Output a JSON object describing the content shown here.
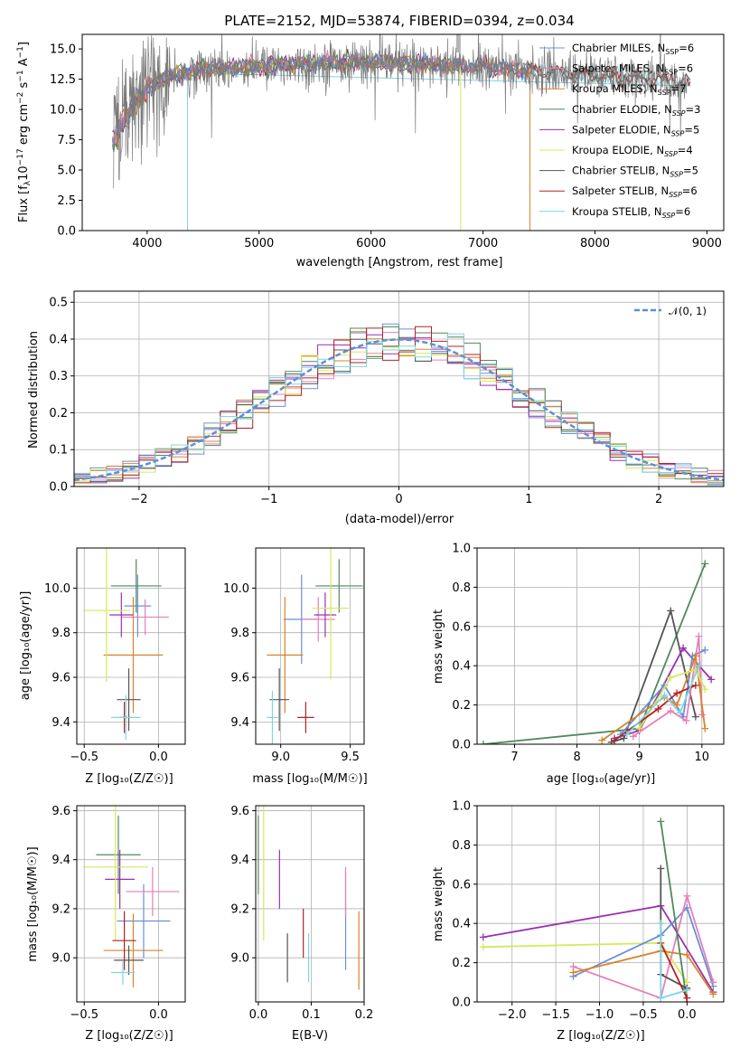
{
  "labels": {
    "main_title": "PLATE=2152, MJD=53874, FIBERID=0394, z=0.034",
    "flux_ylabel": "Flux [f",
    "flux_ylabel_sub": "λ",
    "flux_ylabel_mid": "10",
    "flux_ylabel_sup1": "−17",
    "flux_ylabel_unit": " erg cm",
    "flux_ylabel_sup2": "−2",
    "flux_ylabel_s": " s",
    "flux_ylabel_sup3": "−1",
    "flux_ylabel_end": " A",
    "flux_ylabel_sup4": "−1",
    "flux_ylabel_close": "]",
    "wavelength_xlabel": "wavelength [Angstrom, rest frame]",
    "hist_ylabel": "Normed distribution",
    "hist_xlabel": "(data-model)/error",
    "hist_legend": "𝒩(0, 1)",
    "age_ylabel": "age  [log₁₀(age/yr)]",
    "z_xlabel": "Z [log₁₀(Z/Z☉)]",
    "mass_xlabel": "mass [log₁₀(M/M☉)]",
    "massw_ylabel": "mass weight",
    "age_xlabel": "age  [log₁₀(age/yr)]",
    "mass_ylabel": "mass [log₁₀(M/M☉)]",
    "ebv_xlabel": "E(B-V)"
  },
  "legend": [
    {
      "lib": "Chabrier MILES",
      "n": "6",
      "color": "#6a8fd8"
    },
    {
      "lib": "Salpeter MILES",
      "n": "6",
      "color": "#e77fb8"
    },
    {
      "lib": "Kroupa MILES",
      "n": "7",
      "color": "#d8842b"
    },
    {
      "lib": "Chabrier ELODIE",
      "n": "3",
      "color": "#4f8a5b"
    },
    {
      "lib": "Salpeter ELODIE",
      "n": "5",
      "color": "#9b30b0"
    },
    {
      "lib": "Kroupa ELODIE",
      "n": "4",
      "color": "#d6e85a"
    },
    {
      "lib": "Chabrier STELIB",
      "n": "5",
      "color": "#555555"
    },
    {
      "lib": "Salpeter STELIB",
      "n": "6",
      "color": "#b22222"
    },
    {
      "lib": "Kroupa STELIB",
      "n": "6",
      "color": "#7fd6e0"
    }
  ],
  "chart_data": [
    {
      "type": "line",
      "title": "PLATE=2152, MJD=53874, FIBERID=0394, z=0.034",
      "xlabel": "wavelength [Angstrom, rest frame]",
      "xlim": [
        3420,
        9150
      ],
      "ylim": [
        0,
        16.2
      ],
      "xticks": [
        4000,
        5000,
        6000,
        7000,
        8000,
        9000
      ],
      "yticks": [
        0.0,
        2.5,
        5.0,
        7.5,
        10.0,
        12.5,
        15.0
      ],
      "continuum": [
        [
          3700,
          8.0
        ],
        [
          3800,
          10.0
        ],
        [
          3900,
          11.5
        ],
        [
          4000,
          12.0
        ],
        [
          4200,
          12.7
        ],
        [
          4500,
          13.3
        ],
        [
          5000,
          13.6
        ],
        [
          5500,
          13.8
        ],
        [
          6000,
          13.9
        ],
        [
          6500,
          13.7
        ],
        [
          7000,
          13.5
        ],
        [
          7500,
          13.1
        ],
        [
          8000,
          12.8
        ],
        [
          8500,
          12.5
        ],
        [
          8800,
          12.2
        ]
      ],
      "dropouts": [
        {
          "lib": "Kroupa MILES",
          "x": 7420
        },
        {
          "lib": "Kroupa ELODIE",
          "x": 6800
        },
        {
          "lib": "Kroupa STELIB",
          "x": 4360
        }
      ]
    },
    {
      "type": "bar",
      "xlabel": "(data-model)/error",
      "ylabel": "Normed distribution",
      "xlim": [
        -2.5,
        2.5
      ],
      "ylim": [
        0,
        0.53
      ],
      "xticks": [
        -2,
        -1,
        0,
        1,
        2
      ],
      "yticks": [
        0.0,
        0.1,
        0.2,
        0.3,
        0.4,
        0.5
      ],
      "reference": {
        "name": "𝒩(0, 1)",
        "mu": 0,
        "sigma": 1
      }
    },
    {
      "type": "scatter",
      "xlabel": "Z [log₁₀(Z/Z☉)]",
      "ylabel": "age  [log₁₀(age/yr)]",
      "xlim": [
        -0.55,
        0.18
      ],
      "ylim": [
        9.3,
        10.18
      ],
      "xticks": [
        -0.5,
        0.0
      ],
      "yticks": [
        9.4,
        9.6,
        9.8,
        10.0
      ],
      "points": [
        {
          "x": -0.14,
          "y": 9.92,
          "xe": 0.09,
          "ye": 0.14,
          "lib": "Chabrier MILES"
        },
        {
          "x": -0.09,
          "y": 9.87,
          "xe": 0.16,
          "ye": 0.08,
          "lib": "Salpeter MILES"
        },
        {
          "x": -0.17,
          "y": 9.7,
          "xe": 0.2,
          "ye": 0.26,
          "lib": "Kroupa MILES"
        },
        {
          "x": -0.15,
          "y": 10.01,
          "xe": 0.17,
          "ye": 0.12,
          "lib": "Chabrier ELODIE"
        },
        {
          "x": -0.25,
          "y": 9.88,
          "xe": 0.08,
          "ye": 0.1,
          "lib": "Salpeter ELODIE"
        },
        {
          "x": -0.35,
          "y": 9.9,
          "xe": 0.16,
          "ye": 0.32,
          "lib": "Kroupa ELODIE"
        },
        {
          "x": -0.2,
          "y": 9.5,
          "xe": 0.08,
          "ye": 0.14,
          "lib": "Chabrier STELIB"
        },
        {
          "x": -0.23,
          "y": 9.42,
          "xe": 0.04,
          "ye": 0.07,
          "lib": "Salpeter STELIB"
        },
        {
          "x": -0.22,
          "y": 9.42,
          "xe": 0.1,
          "ye": 0.1,
          "lib": "Kroupa STELIB"
        }
      ]
    },
    {
      "type": "scatter",
      "xlabel": "mass [log₁₀(M/M☉)]",
      "ylabel": "",
      "xlim": [
        8.82,
        9.6
      ],
      "ylim": [
        9.3,
        10.18
      ],
      "xticks": [
        9.0,
        9.5
      ],
      "yticks": [
        9.4,
        9.6,
        9.8,
        10.0
      ],
      "points": [
        {
          "x": 9.15,
          "y": 9.86,
          "xe": 0.13,
          "ye": 0.2,
          "lib": "Chabrier MILES"
        },
        {
          "x": 9.27,
          "y": 9.86,
          "xe": 0.12,
          "ye": 0.1,
          "lib": "Salpeter MILES"
        },
        {
          "x": 9.03,
          "y": 9.7,
          "xe": 0.13,
          "ye": 0.26,
          "lib": "Kroupa MILES"
        },
        {
          "x": 9.42,
          "y": 10.01,
          "xe": 0.17,
          "ye": 0.12,
          "lib": "Chabrier ELODIE"
        },
        {
          "x": 9.32,
          "y": 9.88,
          "xe": 0.08,
          "ye": 0.1,
          "lib": "Salpeter ELODIE"
        },
        {
          "x": 9.36,
          "y": 9.91,
          "xe": 0.13,
          "ye": 0.32,
          "lib": "Kroupa ELODIE"
        },
        {
          "x": 8.99,
          "y": 9.5,
          "xe": 0.07,
          "ye": 0.14,
          "lib": "Chabrier STELIB"
        },
        {
          "x": 9.18,
          "y": 9.42,
          "xe": 0.06,
          "ye": 0.07,
          "lib": "Salpeter STELIB"
        },
        {
          "x": 8.94,
          "y": 9.42,
          "xe": 0.04,
          "ye": 0.12,
          "lib": "Kroupa STELIB"
        }
      ]
    },
    {
      "type": "line",
      "xlabel": "age  [log₁₀(age/yr)]",
      "ylabel": "mass weight",
      "xlim": [
        6.4,
        10.35
      ],
      "ylim": [
        0,
        1.0
      ],
      "xticks": [
        7,
        8,
        9,
        10
      ],
      "yticks": [
        0.0,
        0.2,
        0.4,
        0.6,
        0.8,
        1.0
      ],
      "series": [
        {
          "lib": "Chabrier ELODIE",
          "points": [
            [
              6.5,
              0.0
            ],
            [
              9.0,
              0.08
            ],
            [
              10.05,
              0.92
            ]
          ]
        },
        {
          "lib": "Chabrier STELIB",
          "points": [
            [
              8.55,
              0.01
            ],
            [
              8.75,
              0.03
            ],
            [
              9.5,
              0.68
            ],
            [
              9.9,
              0.14
            ]
          ]
        },
        {
          "lib": "Salpeter ELODIE",
          "points": [
            [
              8.6,
              0.03
            ],
            [
              9.0,
              0.07
            ],
            [
              9.7,
              0.49
            ],
            [
              10.15,
              0.33
            ]
          ]
        },
        {
          "lib": "Chabrier MILES",
          "points": [
            [
              8.7,
              0.05
            ],
            [
              9.4,
              0.3
            ],
            [
              9.7,
              0.14
            ],
            [
              9.85,
              0.45
            ],
            [
              10.05,
              0.48
            ]
          ]
        },
        {
          "lib": "Salpeter MILES",
          "points": [
            [
              8.9,
              0.04
            ],
            [
              9.5,
              0.17
            ],
            [
              9.75,
              0.12
            ],
            [
              9.95,
              0.55
            ],
            [
              10.0,
              0.15
            ]
          ]
        },
        {
          "lib": "Kroupa MILES",
          "points": [
            [
              8.4,
              0.02
            ],
            [
              9.4,
              0.24
            ],
            [
              9.6,
              0.2
            ],
            [
              9.9,
              0.45
            ],
            [
              10.05,
              0.08
            ]
          ]
        },
        {
          "lib": "Kroupa ELODIE",
          "points": [
            [
              9.0,
              0.08
            ],
            [
              9.5,
              0.34
            ],
            [
              9.9,
              0.38
            ],
            [
              10.05,
              0.28
            ]
          ]
        },
        {
          "lib": "Salpeter STELIB",
          "points": [
            [
              8.6,
              0.02
            ],
            [
              9.3,
              0.18
            ],
            [
              9.6,
              0.26
            ],
            [
              9.9,
              0.3
            ]
          ]
        },
        {
          "lib": "Kroupa STELIB",
          "points": [
            [
              8.8,
              0.05
            ],
            [
              9.4,
              0.25
            ],
            [
              9.65,
              0.16
            ],
            [
              9.95,
              0.4
            ]
          ]
        }
      ]
    },
    {
      "type": "scatter",
      "xlabel": "Z [log₁₀(Z/Z☉)]",
      "ylabel": "mass [log₁₀(M/M☉)]",
      "xlim": [
        -0.55,
        0.18
      ],
      "ylim": [
        8.82,
        9.62
      ],
      "xticks": [
        -0.5,
        0.0
      ],
      "yticks": [
        9.0,
        9.2,
        9.4,
        9.6
      ],
      "points": [
        {
          "x": -0.1,
          "y": 9.15,
          "xe": 0.18,
          "ye": 0.15,
          "lib": "Chabrier MILES"
        },
        {
          "x": -0.04,
          "y": 9.27,
          "xe": 0.18,
          "ye": 0.1,
          "lib": "Salpeter MILES"
        },
        {
          "x": -0.17,
          "y": 9.03,
          "xe": 0.2,
          "ye": 0.15,
          "lib": "Kroupa MILES"
        },
        {
          "x": -0.27,
          "y": 9.42,
          "xe": 0.15,
          "ye": 0.16,
          "lib": "Chabrier ELODIE"
        },
        {
          "x": -0.26,
          "y": 9.32,
          "xe": 0.1,
          "ye": 0.12,
          "lib": "Salpeter ELODIE"
        },
        {
          "x": -0.29,
          "y": 9.37,
          "xe": 0.22,
          "ye": 0.3,
          "lib": "Kroupa ELODIE"
        },
        {
          "x": -0.2,
          "y": 8.99,
          "xe": 0.1,
          "ye": 0.06,
          "lib": "Chabrier STELIB"
        },
        {
          "x": -0.23,
          "y": 9.07,
          "xe": 0.08,
          "ye": 0.12,
          "lib": "Salpeter STELIB"
        },
        {
          "x": -0.24,
          "y": 8.94,
          "xe": 0.08,
          "ye": 0.05,
          "lib": "Kroupa STELIB"
        }
      ]
    },
    {
      "type": "scatter",
      "xlabel": "E(B-V)",
      "ylabel": "",
      "xlim": [
        -0.005,
        0.2
      ],
      "ylim": [
        8.82,
        9.62
      ],
      "xticks": [
        0.0,
        0.1,
        0.2
      ],
      "yticks": [
        9.0,
        9.2,
        9.4,
        9.6
      ],
      "points": [
        {
          "x": 0.165,
          "y": 9.15,
          "xe": 0,
          "ye": 0.2,
          "lib": "Chabrier MILES"
        },
        {
          "x": 0.165,
          "y": 9.27,
          "xe": 0,
          "ye": 0.1,
          "lib": "Salpeter MILES"
        },
        {
          "x": 0.19,
          "y": 9.03,
          "xe": 0,
          "ye": 0.16,
          "lib": "Kroupa MILES"
        },
        {
          "x": 0.0,
          "y": 9.42,
          "xe": 0,
          "ye": 0.16,
          "lib": "Chabrier ELODIE"
        },
        {
          "x": 0.04,
          "y": 9.32,
          "xe": 0,
          "ye": 0.12,
          "lib": "Salpeter ELODIE"
        },
        {
          "x": 0.01,
          "y": 9.37,
          "xe": 0,
          "ye": 0.3,
          "lib": "Kroupa ELODIE"
        },
        {
          "x": 0.055,
          "y": 9.0,
          "xe": 0,
          "ye": 0.1,
          "lib": "Chabrier STELIB"
        },
        {
          "x": 0.085,
          "y": 9.1,
          "xe": 0,
          "ye": 0.1,
          "lib": "Salpeter STELIB"
        },
        {
          "x": 0.095,
          "y": 9.0,
          "xe": 0,
          "ye": 0.1,
          "lib": "Kroupa STELIB"
        }
      ]
    },
    {
      "type": "line",
      "xlabel": "Z [log₁₀(Z/Z☉)]",
      "ylabel": "mass weight",
      "xlim": [
        -2.4,
        0.42
      ],
      "ylim": [
        0,
        1.0
      ],
      "xticks": [
        -2.0,
        -1.5,
        -1.0,
        -0.5,
        0.0
      ],
      "yticks": [
        0.0,
        0.2,
        0.4,
        0.6,
        0.8,
        1.0
      ],
      "series": [
        {
          "lib": "Salpeter ELODIE",
          "points": [
            [
              -2.33,
              0.33
            ],
            [
              -0.3,
              0.49
            ],
            [
              0.3,
              0.05
            ]
          ]
        },
        {
          "lib": "Kroupa ELODIE",
          "points": [
            [
              -2.33,
              0.28
            ],
            [
              -0.3,
              0.3
            ],
            [
              0.0,
              0.1
            ]
          ]
        },
        {
          "lib": "Chabrier MILES",
          "points": [
            [
              -1.3,
              0.13
            ],
            [
              -0.3,
              0.34
            ],
            [
              0.0,
              0.48
            ],
            [
              0.3,
              0.08
            ]
          ]
        },
        {
          "lib": "Salpeter MILES",
          "points": [
            [
              -1.3,
              0.18
            ],
            [
              -0.3,
              0.02
            ],
            [
              0.0,
              0.54
            ],
            [
              0.3,
              0.1
            ]
          ]
        },
        {
          "lib": "Kroupa MILES",
          "points": [
            [
              -1.3,
              0.15
            ],
            [
              -0.3,
              0.26
            ],
            [
              0.0,
              0.24
            ],
            [
              0.3,
              0.04
            ]
          ]
        },
        {
          "lib": "Chabrier ELODIE",
          "points": [
            [
              -0.3,
              0.92
            ],
            [
              0.0,
              0.0
            ]
          ]
        },
        {
          "lib": "Chabrier STELIB",
          "points": [
            [
              -0.3,
              0.68
            ],
            [
              -0.3,
              0.14
            ],
            [
              0.0,
              0.07
            ]
          ]
        },
        {
          "lib": "Salpeter STELIB",
          "points": [
            [
              -0.3,
              0.3
            ],
            [
              0.0,
              0.02
            ]
          ]
        },
        {
          "lib": "Kroupa STELIB",
          "points": [
            [
              -0.3,
              0.4
            ],
            [
              -0.3,
              0.02
            ],
            [
              0.0,
              0.06
            ]
          ]
        }
      ]
    }
  ]
}
